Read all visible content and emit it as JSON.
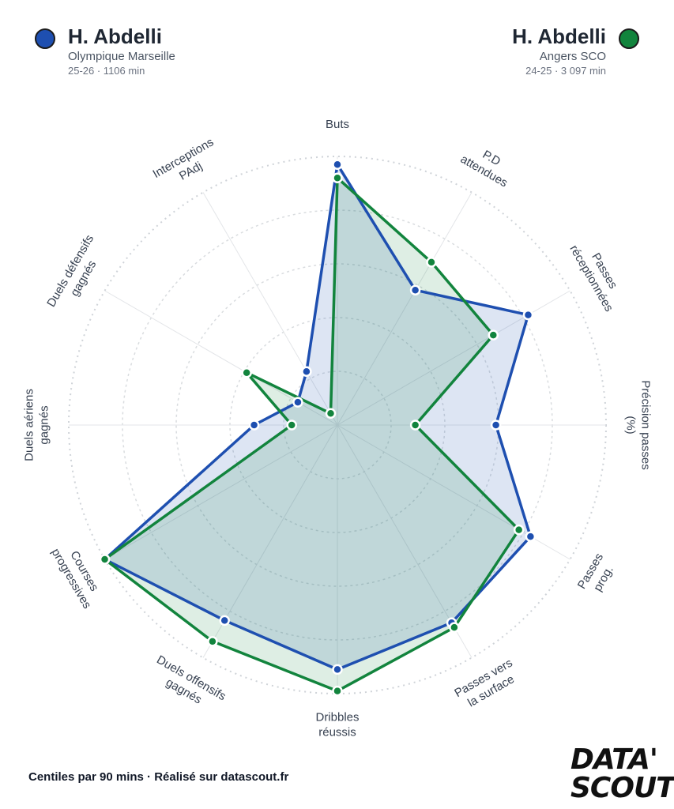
{
  "players": [
    {
      "name": "H. Abdelli",
      "club": "Olympique Marseille",
      "meta": "25-26 · 1106 min",
      "color": "#1e4fb0"
    },
    {
      "name": "H. Abdelli",
      "club": "Angers SCO",
      "meta": "24-25 · 3 097 min",
      "color": "#12843d"
    }
  ],
  "chart_data": {
    "type": "radar",
    "range": [
      0,
      100
    ],
    "rings": [
      20,
      40,
      60,
      80,
      100
    ],
    "axes": [
      {
        "label": "Buts",
        "lines": [
          "Buts"
        ]
      },
      {
        "label": "P.D attendues",
        "lines": [
          "P.D",
          "attendues"
        ]
      },
      {
        "label": "Passes réceptionnées",
        "lines": [
          "Passes",
          "réceptionnées"
        ]
      },
      {
        "label": "Précision passes (%)",
        "lines": [
          "Précision passes",
          "(%)"
        ]
      },
      {
        "label": "Passes prog.",
        "lines": [
          "Passes",
          "prog."
        ]
      },
      {
        "label": "Passes vers la surface",
        "lines": [
          "Passes vers",
          "la surface"
        ]
      },
      {
        "label": "Dribbles réussis",
        "lines": [
          "Dribbles",
          "réussis"
        ]
      },
      {
        "label": "Duels offensifs gagnés",
        "lines": [
          "Duels offensifs",
          "gagnés"
        ]
      },
      {
        "label": "Courses progressives",
        "lines": [
          "Courses",
          "progressives"
        ]
      },
      {
        "label": "Duels aériens gagnés",
        "lines": [
          "Duels aériens",
          "gagnés"
        ]
      },
      {
        "label": "Duels défensifs gagnés",
        "lines": [
          "Duels défensifs",
          "gagnés"
        ]
      },
      {
        "label": "Interceptions PAdj",
        "lines": [
          "Interceptions",
          "PAdj"
        ]
      }
    ],
    "series": [
      {
        "name": "H. Abdelli",
        "color": "#1e4fb0",
        "values": [
          97,
          58,
          82,
          59,
          83,
          85,
          91,
          84,
          100,
          31,
          17,
          23
        ]
      },
      {
        "name": "H. Abdelli",
        "color": "#12843d",
        "values": [
          92,
          70,
          67,
          29,
          78,
          87,
          99,
          93,
          100,
          17,
          39,
          5
        ]
      }
    ]
  },
  "footer": "Centiles par 90 mins · Réalisé sur datascout.fr",
  "logo": {
    "line1": "DATA'",
    "line2": "SCOUT"
  }
}
